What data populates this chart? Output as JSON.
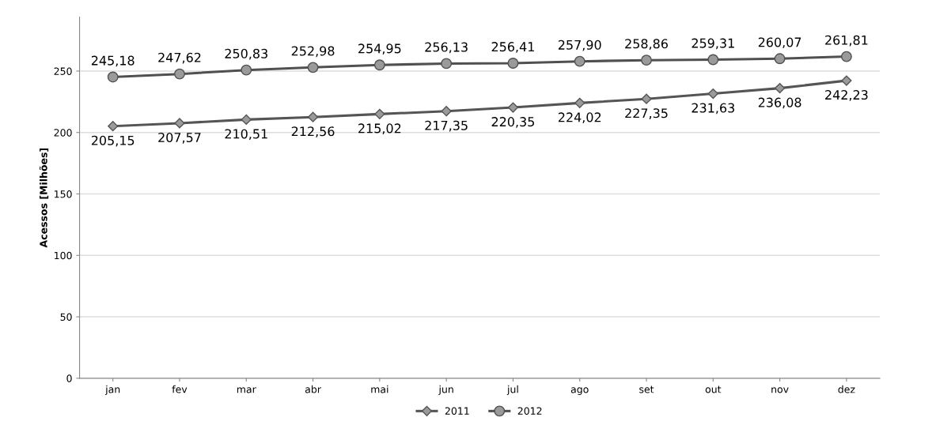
{
  "chart_data": {
    "type": "line",
    "ylabel": "Acessos [Milhões]",
    "categories": [
      "jan",
      "fev",
      "mar",
      "abr",
      "mai",
      "jun",
      "jul",
      "ago",
      "set",
      "out",
      "nov",
      "dez"
    ],
    "series": [
      {
        "name": "2011",
        "color": "#555555",
        "marker": "diamond",
        "values": [
          205.15,
          207.57,
          210.51,
          212.56,
          215.02,
          217.35,
          220.35,
          224.02,
          227.35,
          231.63,
          236.08,
          242.23
        ],
        "value_labels": [
          "205,15",
          "207,57",
          "210,51",
          "212,56",
          "215,02",
          "217,35",
          "220,35",
          "224,02",
          "227,35",
          "231,63",
          "236,08",
          "242,23"
        ]
      },
      {
        "name": "2012",
        "color": "#505050",
        "marker": "circle",
        "values": [
          245.18,
          247.62,
          250.83,
          252.98,
          254.95,
          256.13,
          256.41,
          257.9,
          258.86,
          259.31,
          260.07,
          261.81
        ],
        "value_labels": [
          "245,18",
          "247,62",
          "250,83",
          "252,98",
          "254,95",
          "256,13",
          "256,41",
          "257,90",
          "258,86",
          "259,31",
          "260,07",
          "261,81"
        ]
      }
    ],
    "ylim": [
      0,
      294
    ],
    "yticks": [
      0,
      50,
      100,
      150,
      200,
      250
    ],
    "grid": "y",
    "legend": "bottom"
  }
}
